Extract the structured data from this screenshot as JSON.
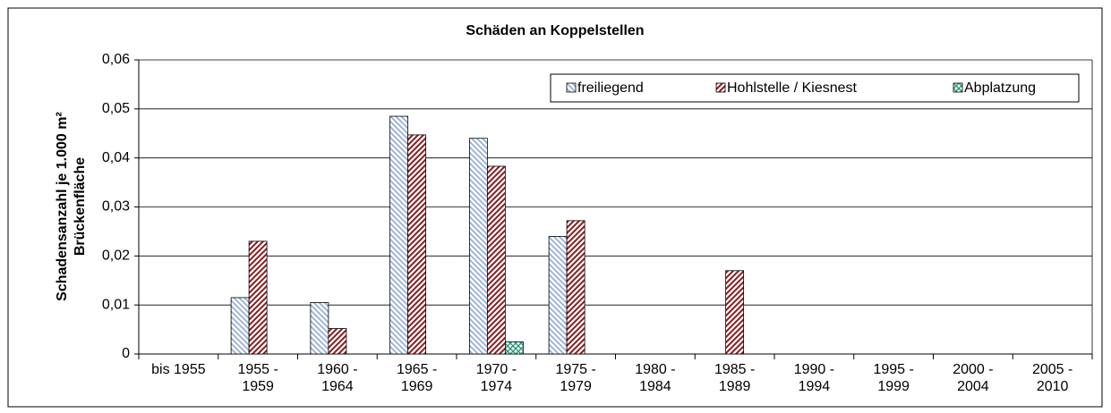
{
  "chart_data": {
    "type": "bar",
    "title": "Schäden an  Koppelstellen",
    "y_label": "Schadensanzahl je 1.000 m² Brückenfläche",
    "categories": [
      "bis 1955",
      "1955 - 1959",
      "1960 - 1964",
      "1965 - 1969",
      "1970 - 1974",
      "1975 - 1979",
      "1980 - 1984",
      "1985 - 1989",
      "1990 - 1994",
      "1995 - 1999",
      "2000 - 2004",
      "2005 - 2010"
    ],
    "series": [
      {
        "name": "freiliegend",
        "color": "#8fa8d8",
        "values": [
          0,
          0.0115,
          0.0105,
          0.0485,
          0.044,
          0.024,
          0,
          0,
          0,
          0,
          0,
          0
        ]
      },
      {
        "name": "Hohlstelle / Kiesnest",
        "color": "#8b1a1a",
        "values": [
          0,
          0.023,
          0.0052,
          0.0447,
          0.0383,
          0.0272,
          0,
          0.017,
          0,
          0,
          0,
          0
        ]
      },
      {
        "name": "Abplatzung",
        "color": "#2a9a7a",
        "values": [
          0,
          0,
          0,
          0,
          0.0025,
          0,
          0,
          0,
          0,
          0,
          0,
          0
        ]
      }
    ],
    "ylim": [
      0,
      0.06
    ],
    "yticks": [
      0,
      {
        "value": 0.01,
        "label": "0,01"
      },
      {
        "value": 0.02,
        "label": "0,02"
      },
      {
        "value": 0.03,
        "label": "0,03"
      },
      {
        "value": 0.04,
        "label": "0,04"
      },
      {
        "value": 0.05,
        "label": "0,05"
      },
      {
        "value": 0.06,
        "label": "0,06"
      }
    ],
    "grid": true,
    "legend": "top-right"
  }
}
